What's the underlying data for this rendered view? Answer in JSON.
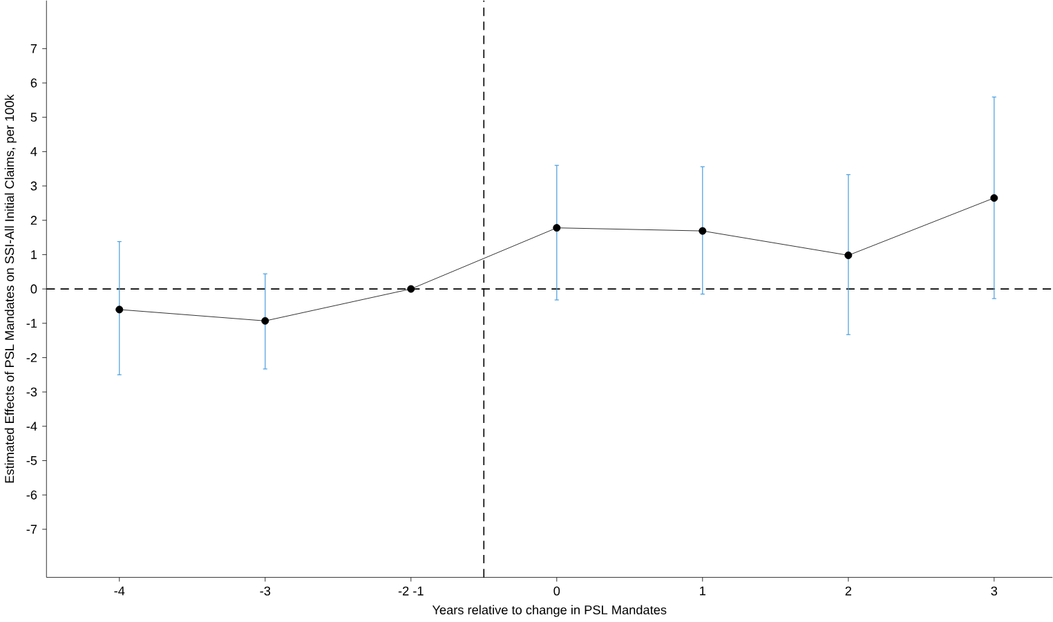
{
  "chart_data": {
    "type": "line",
    "xlabel": "Years relative to change in PSL Mandates",
    "ylabel": "Estimated Effects of PSL Mandates on SSI-All Initial Claims, per 100k",
    "categories": [
      "-4",
      "-3",
      "-2 -1",
      "0",
      "1",
      "2",
      "3"
    ],
    "series": [
      {
        "color": "#000000",
        "values": [
          -0.6,
          -0.93,
          0,
          1.78,
          1.69,
          0.98,
          2.65
        ],
        "errors": [
          [
            -2.5,
            1.38
          ],
          [
            -2.33,
            0.44
          ],
          null,
          [
            -0.32,
            3.6
          ],
          [
            -0.15,
            3.56
          ],
          [
            -1.33,
            3.33
          ],
          [
            -0.28,
            5.59
          ]
        ]
      }
    ],
    "ylim": [
      -8.4,
      8.4
    ],
    "yticks": [
      -7,
      -6,
      -5,
      -4,
      -3,
      -2,
      -1,
      0,
      1,
      2,
      3,
      4,
      5,
      6,
      7
    ],
    "marker": "circle",
    "line_style": "solid",
    "grid": false,
    "ref_lines": [
      {
        "axis": "y",
        "value": 0,
        "line_style": "dashed",
        "color": "#000000"
      }
    ]
  }
}
